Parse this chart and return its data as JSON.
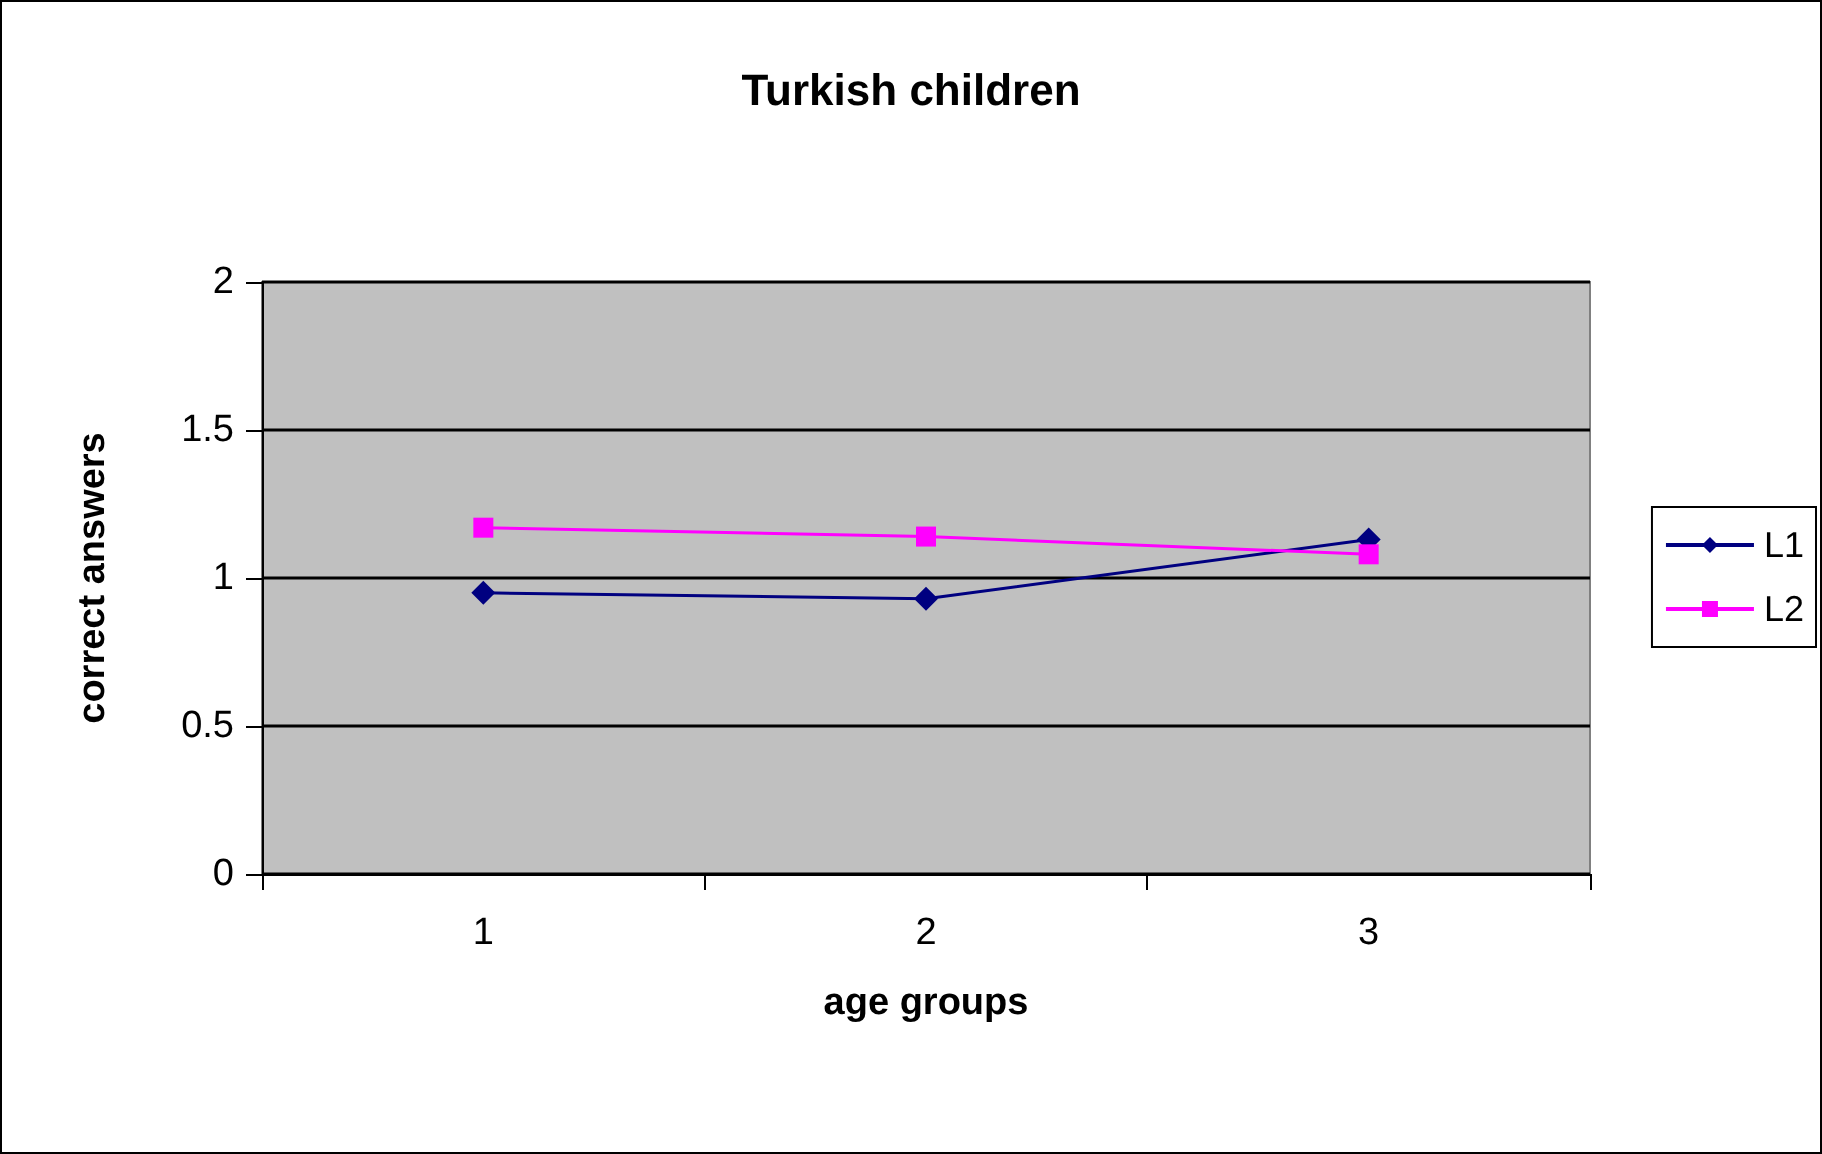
{
  "chart_data": {
    "type": "line",
    "title": "Turkish children",
    "xlabel": "age groups",
    "ylabel": "correct answers",
    "categories": [
      "1",
      "2",
      "3"
    ],
    "series": [
      {
        "name": "L1",
        "color": "#000080",
        "marker": "diamond",
        "values": [
          0.95,
          0.93,
          1.13
        ]
      },
      {
        "name": "L2",
        "color": "#ff00ff",
        "marker": "square",
        "values": [
          1.17,
          1.14,
          1.08
        ]
      }
    ],
    "ylim": [
      0,
      2
    ],
    "yticks": [
      0,
      0.5,
      1,
      1.5,
      2
    ],
    "grid": "y",
    "legend": "right"
  }
}
